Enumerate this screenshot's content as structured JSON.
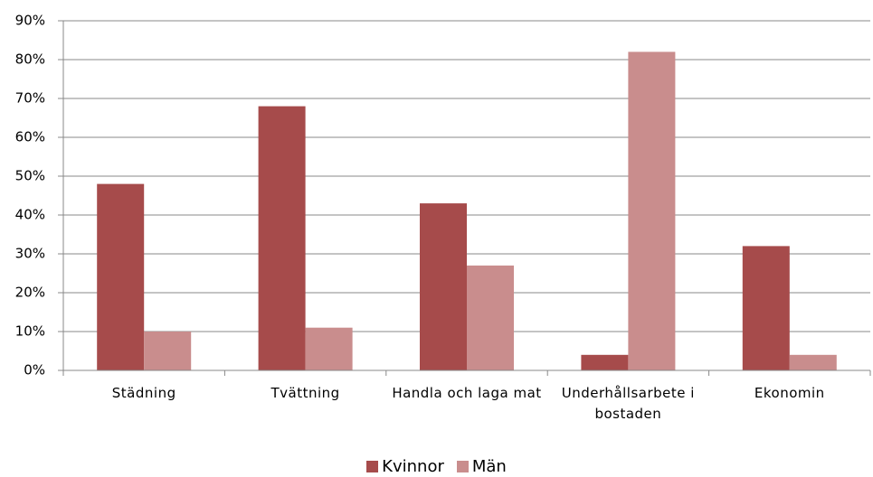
{
  "chart_data": {
    "type": "bar",
    "categories": [
      "Städning",
      "Tvättning",
      "Handla och laga mat",
      "Underhållsarbete i bostaden",
      "Ekonomin"
    ],
    "series": [
      {
        "name": "Kvinnor",
        "color": "#a64b4b",
        "values": [
          48,
          68,
          43,
          4,
          32
        ]
      },
      {
        "name": "Män",
        "color": "#c98d8d",
        "values": [
          10,
          11,
          27,
          82,
          4
        ]
      }
    ],
    "ylim": [
      0,
      90
    ],
    "yticks": [
      {
        "value": 0,
        "label": "0%"
      },
      {
        "value": 10,
        "label": "10%"
      },
      {
        "value": 20,
        "label": "20%"
      },
      {
        "value": 30,
        "label": "30%"
      },
      {
        "value": 40,
        "label": "40%"
      },
      {
        "value": 50,
        "label": "50%"
      },
      {
        "value": 60,
        "label": "60%"
      },
      {
        "value": 70,
        "label": "70%"
      },
      {
        "value": 80,
        "label": "80%"
      },
      {
        "value": 90,
        "label": "90%"
      }
    ],
    "grid": true,
    "legend": "bottom"
  }
}
